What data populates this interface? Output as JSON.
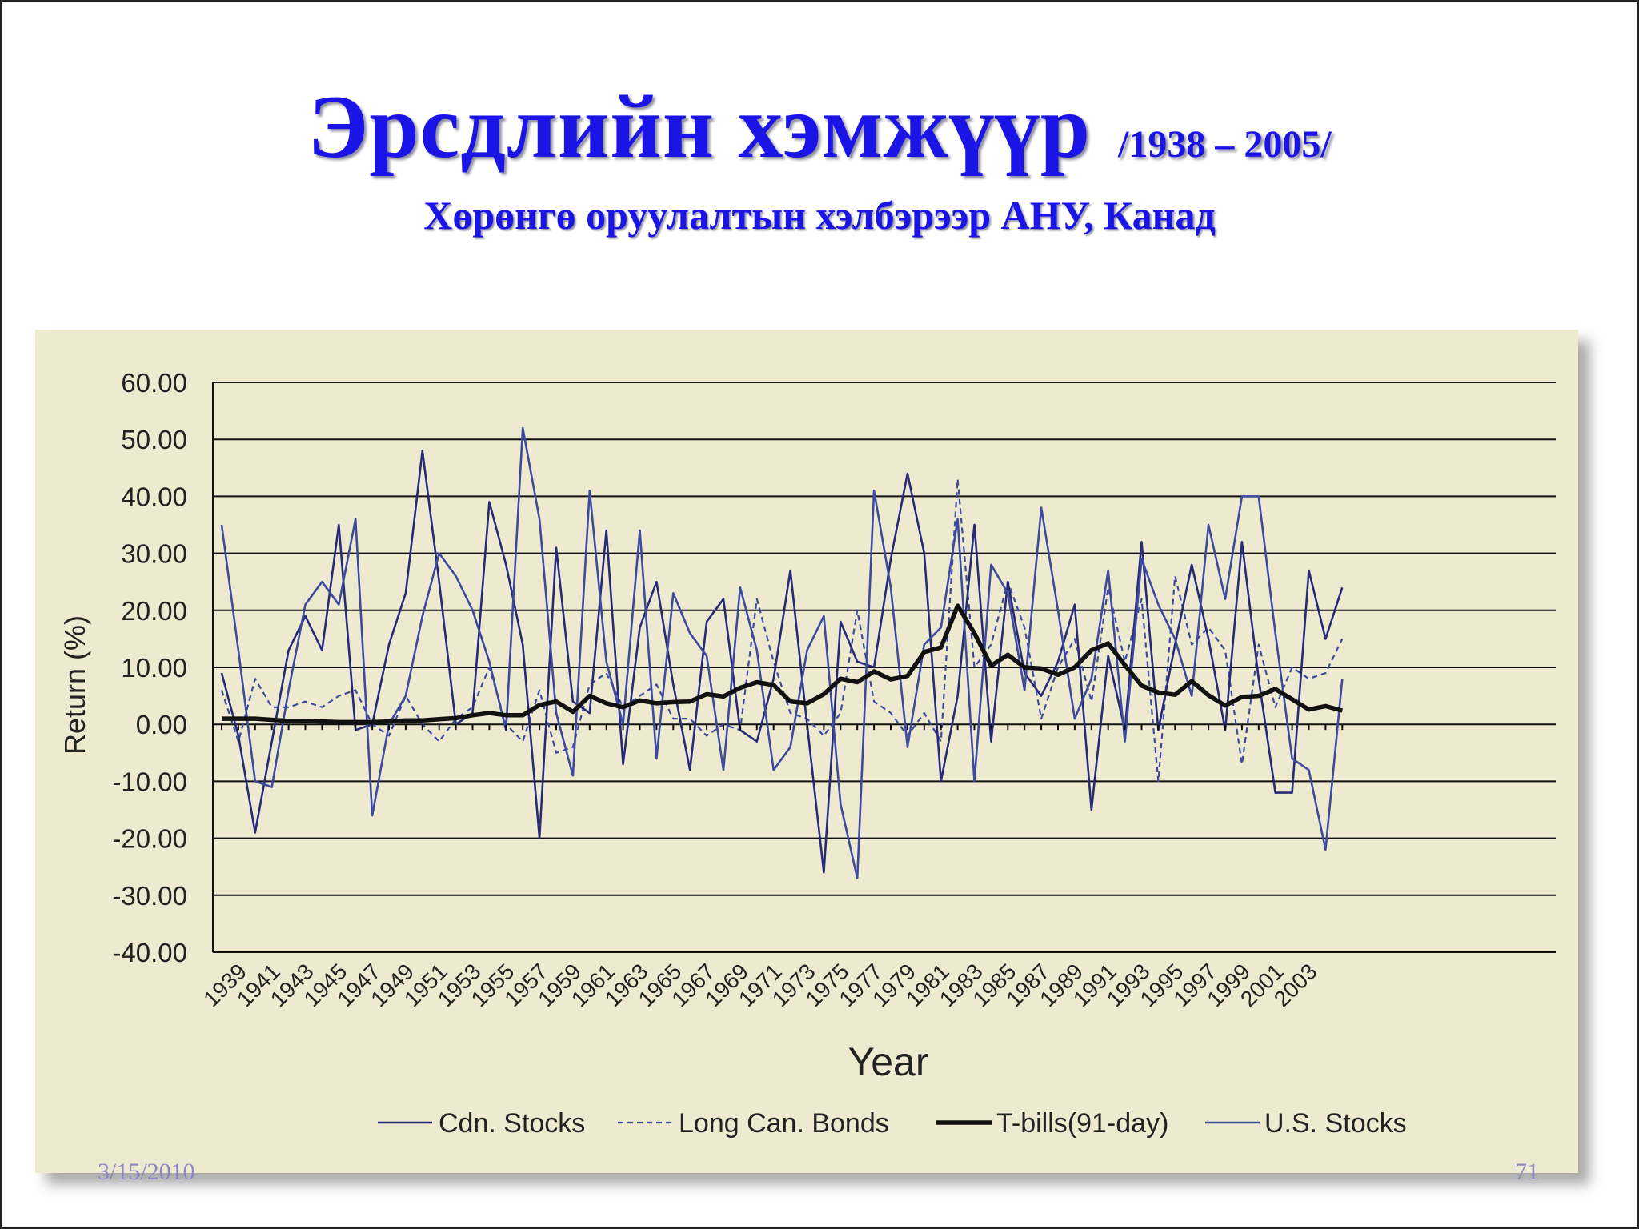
{
  "slide": {
    "title": "Эрсдлийн хэмжүүр",
    "title_years": "/1938 – 2005/",
    "subtitle": "Хөрөнгө оруулалтын хэлбэрээр АНУ, Канад",
    "date": "3/15/2010",
    "page_number": "71"
  },
  "colors": {
    "title": "#1a14e6",
    "panel_background": "#eeead0",
    "series_blue": "#3c4aa0",
    "series_dark_blue": "#262a78",
    "tbills": "#111111"
  },
  "chart_data": {
    "type": "line",
    "xlabel": "Year",
    "ylabel": "Return (%)",
    "ylim": [
      -40,
      60
    ],
    "yticks": [
      "60.00",
      "50.00",
      "40.00",
      "30.00",
      "20.00",
      "10.00",
      "0.00",
      "-10.00",
      "-20.00",
      "-30.00",
      "-40.00"
    ],
    "xtick_labels": [
      "1939",
      "1941",
      "1943",
      "1945",
      "1947",
      "1949",
      "1951",
      "1953",
      "1955",
      "1957",
      "1959",
      "1961",
      "1963",
      "1965",
      "1967",
      "1969",
      "1971",
      "1973",
      "1975",
      "1977",
      "1979",
      "1981",
      "1983",
      "1985",
      "1987",
      "1989",
      "1991",
      "1993",
      "1995",
      "1997",
      "1999",
      "2001",
      "2003"
    ],
    "x": [
      1938,
      1939,
      1940,
      1941,
      1942,
      1943,
      1944,
      1945,
      1946,
      1947,
      1948,
      1949,
      1950,
      1951,
      1952,
      1953,
      1954,
      1955,
      1956,
      1957,
      1958,
      1959,
      1960,
      1961,
      1962,
      1963,
      1964,
      1965,
      1966,
      1967,
      1968,
      1969,
      1970,
      1971,
      1972,
      1973,
      1974,
      1975,
      1976,
      1977,
      1978,
      1979,
      1980,
      1981,
      1982,
      1983,
      1984,
      1985,
      1986,
      1987,
      1988,
      1989,
      1990,
      1991,
      1992,
      1993,
      1994,
      1995,
      1996,
      1997,
      1998,
      1999,
      2000,
      2001,
      2002,
      2003,
      2004,
      2005
    ],
    "grid": "horizontal",
    "legend_position": "bottom",
    "series": [
      {
        "name": "Cdn. Stocks",
        "style": "solid-blue",
        "values": [
          9,
          -2,
          -19,
          -3,
          13,
          19,
          13,
          35,
          -1,
          0,
          14,
          23,
          48,
          25,
          0,
          2,
          39,
          28,
          14,
          -20,
          31,
          4,
          2,
          34,
          -7,
          17,
          25,
          7,
          -8,
          18,
          22,
          -1,
          -3,
          8,
          27,
          0,
          -26,
          18,
          11,
          10,
          29,
          44,
          30,
          -10,
          5,
          35,
          -3,
          25,
          9,
          5,
          11,
          21,
          -15,
          12,
          -1,
          32,
          -1,
          14,
          28,
          15,
          -1,
          32,
          8,
          -12,
          -12,
          27,
          15,
          24
        ]
      },
      {
        "name": "Long Can. Bonds",
        "style": "dashed-blue",
        "values": [
          6,
          -3,
          8,
          3,
          3,
          4,
          3,
          5,
          6,
          0,
          -2,
          5,
          0,
          -3,
          1,
          3,
          10,
          0,
          -3,
          6,
          -5,
          -4,
          7,
          9,
          3,
          5,
          7,
          1,
          1,
          -2,
          0,
          -1,
          22,
          11,
          2,
          1,
          -2,
          2,
          20,
          4,
          2,
          -2,
          2,
          -3,
          43,
          10,
          14,
          25,
          17,
          1,
          10,
          15,
          4,
          24,
          11,
          22,
          -10,
          26,
          14,
          17,
          13,
          -7,
          14,
          3,
          10,
          8,
          9,
          15
        ]
      },
      {
        "name": "T-bills(91-day)",
        "style": "thick-black",
        "values": [
          1,
          1,
          1,
          0.8,
          0.6,
          0.6,
          0.5,
          0.4,
          0.4,
          0.4,
          0.5,
          0.7,
          0.7,
          0.9,
          1.1,
          1.6,
          2,
          1.6,
          1.6,
          3.4,
          4,
          2.2,
          5,
          3.7,
          3,
          4.2,
          3.7,
          3.9,
          4,
          5.3,
          4.9,
          6.4,
          7.4,
          6.9,
          4,
          3.7,
          5.3,
          8,
          7.4,
          9.3,
          7.9,
          8.5,
          12.7,
          13.5,
          20.8,
          16,
          10.3,
          12.2,
          10,
          9.8,
          8.7,
          10,
          13,
          14.2,
          10.4,
          6.8,
          5.6,
          5.2,
          7.6,
          5.1,
          3.3,
          4.8,
          5,
          6.2,
          4.4,
          2.6,
          3.2,
          2.4
        ]
      },
      {
        "name": "U.S. Stocks",
        "style": "solid-blue",
        "values": [
          35,
          13,
          -10,
          -11,
          6,
          21,
          25,
          21,
          36,
          -16,
          0,
          5,
          19,
          30,
          26,
          20,
          11,
          -1,
          52,
          36,
          2,
          -9,
          41,
          11,
          0,
          34,
          -6,
          23,
          16,
          12,
          -8,
          24,
          13,
          -8,
          -4,
          13,
          19,
          -14,
          -27,
          41,
          24,
          -4,
          14,
          17,
          36,
          -10,
          28,
          23,
          6,
          38,
          20,
          1,
          8,
          27,
          -3,
          29,
          21,
          15,
          5,
          35,
          22,
          40,
          40,
          16,
          -6,
          -8,
          -22,
          8
        ]
      }
    ]
  }
}
